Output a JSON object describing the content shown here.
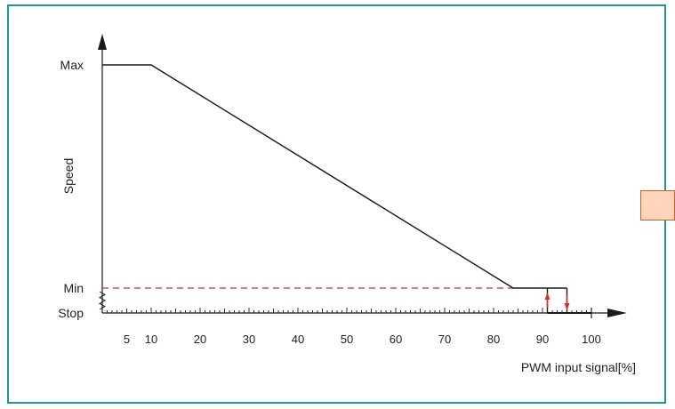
{
  "colors": {
    "frame": "#1f9a93",
    "line": "#1a1a1a",
    "min_dashed": "#c0392b",
    "arrows": "#d43030",
    "side_box_fill": "#ffd6bb",
    "side_box_border": "#c2622a"
  },
  "chart_data": {
    "type": "line",
    "title": "",
    "xlabel": "PWM  input signal[%]",
    "ylabel": "Speed",
    "x_ticks": [
      5,
      10,
      20,
      30,
      40,
      50,
      60,
      70,
      80,
      90,
      100
    ],
    "xlim": [
      0,
      106
    ],
    "y_levels": [
      "Stop",
      "Min",
      "Max"
    ],
    "series": [
      {
        "x": [
          0,
          10,
          84,
          95
        ],
        "y": [
          "Max",
          "Max",
          "Min",
          "Min"
        ]
      }
    ],
    "min_reference_line": {
      "level": "Min",
      "style": "dashed",
      "x": [
        0,
        84
      ]
    },
    "hysteresis": {
      "x": [
        91,
        95
      ],
      "stop_segment_x": [
        91,
        100
      ],
      "arrows": [
        "up",
        "down"
      ]
    },
    "grid": false
  }
}
